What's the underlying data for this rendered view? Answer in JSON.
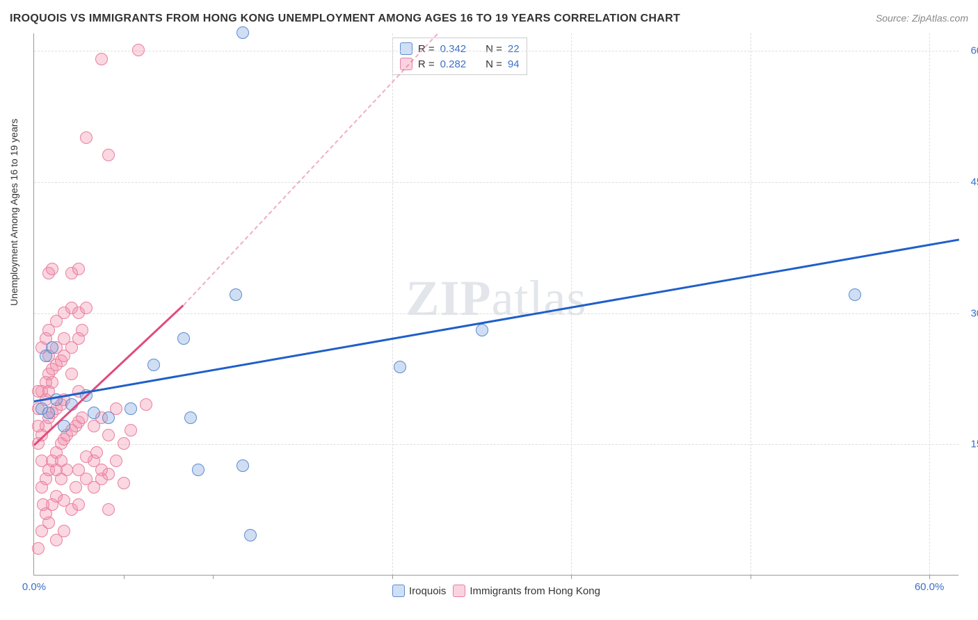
{
  "title": "IROQUOIS VS IMMIGRANTS FROM HONG KONG UNEMPLOYMENT AMONG AGES 16 TO 19 YEARS CORRELATION CHART",
  "source": "Source: ZipAtlas.com",
  "watermark": {
    "bold": "ZIP",
    "rest": "atlas"
  },
  "y_axis_label": "Unemployment Among Ages 16 to 19 years",
  "chart": {
    "type": "scatter",
    "xlim": [
      0,
      62
    ],
    "ylim": [
      0,
      62
    ],
    "x_ticks": [
      0,
      60
    ],
    "x_tick_labels": [
      "0.0%",
      "60.0%"
    ],
    "x_minor_ticks": [
      6,
      12,
      24,
      36,
      48,
      60
    ],
    "y_ticks": [
      15,
      30,
      45,
      60
    ],
    "y_tick_labels": [
      "15.0%",
      "30.0%",
      "45.0%",
      "60.0%"
    ],
    "grid_color": "#dddddd",
    "background_color": "#ffffff",
    "axis_color": "#999999",
    "point_radius": 9,
    "point_stroke_width": 1.5
  },
  "series": [
    {
      "name": "Iroquois",
      "color_fill": "rgba(120,160,220,0.35)",
      "color_stroke": "#5a8bd0",
      "legend_swatch_fill": "#cfe0f5",
      "legend_swatch_stroke": "#5a8bd0",
      "R": "0.342",
      "N": "22",
      "trend": {
        "x1": 0,
        "y1": 20,
        "x2": 62,
        "y2": 38.5,
        "color": "#1f5fc9",
        "width": 3
      },
      "trend_dashed": null,
      "points": [
        [
          0.5,
          19
        ],
        [
          0.8,
          25
        ],
        [
          1.0,
          18.5
        ],
        [
          1.2,
          26
        ],
        [
          1.5,
          20
        ],
        [
          2.0,
          17
        ],
        [
          2.5,
          19.5
        ],
        [
          3.5,
          20.5
        ],
        [
          4.0,
          18.5
        ],
        [
          5.0,
          18
        ],
        [
          6.5,
          19
        ],
        [
          8.0,
          24
        ],
        [
          10.0,
          27
        ],
        [
          10.5,
          18
        ],
        [
          11.0,
          12
        ],
        [
          13.5,
          32
        ],
        [
          14.0,
          12.5
        ],
        [
          14.5,
          4.5
        ],
        [
          24.5,
          23.8
        ],
        [
          30.0,
          28
        ],
        [
          55.0,
          32
        ],
        [
          14.0,
          62
        ]
      ]
    },
    {
      "name": "Immigrants from Hong Kong",
      "color_fill": "rgba(240,140,170,0.35)",
      "color_stroke": "#e87fa0",
      "legend_swatch_fill": "#f9d4e0",
      "legend_swatch_stroke": "#e87fa0",
      "R": "0.282",
      "N": "94",
      "trend": {
        "x1": 0,
        "y1": 15,
        "x2": 10,
        "y2": 31,
        "color": "#e24a7a",
        "width": 3
      },
      "trend_dashed": {
        "x1": 10,
        "y1": 31,
        "x2": 27,
        "y2": 62,
        "color": "rgba(226,74,122,0.45)"
      },
      "points": [
        [
          0.3,
          3
        ],
        [
          0.5,
          5
        ],
        [
          1.0,
          6
        ],
        [
          0.8,
          7
        ],
        [
          1.2,
          8
        ],
        [
          2.0,
          8.5
        ],
        [
          2.5,
          7.5
        ],
        [
          3.0,
          8
        ],
        [
          3.5,
          11
        ],
        [
          4.0,
          10
        ],
        [
          4.5,
          11
        ],
        [
          5.0,
          7.5
        ],
        [
          2.0,
          5
        ],
        [
          1.5,
          4
        ],
        [
          0.5,
          10
        ],
        [
          0.8,
          11
        ],
        [
          1.0,
          12
        ],
        [
          1.2,
          13
        ],
        [
          1.5,
          14
        ],
        [
          1.8,
          15
        ],
        [
          2.0,
          15.5
        ],
        [
          2.2,
          16
        ],
        [
          2.5,
          16.5
        ],
        [
          2.8,
          17
        ],
        [
          3.0,
          17.5
        ],
        [
          3.2,
          18
        ],
        [
          0.3,
          15
        ],
        [
          0.5,
          16
        ],
        [
          0.8,
          17
        ],
        [
          1.0,
          18
        ],
        [
          1.2,
          18.5
        ],
        [
          1.5,
          19
        ],
        [
          1.8,
          19.5
        ],
        [
          2.0,
          20
        ],
        [
          0.5,
          21
        ],
        [
          0.8,
          22
        ],
        [
          1.0,
          23
        ],
        [
          1.2,
          23.5
        ],
        [
          1.5,
          24
        ],
        [
          1.8,
          24.5
        ],
        [
          2.0,
          25
        ],
        [
          2.5,
          26
        ],
        [
          3.0,
          27
        ],
        [
          3.2,
          28
        ],
        [
          0.5,
          26
        ],
        [
          0.8,
          27
        ],
        [
          1.0,
          28
        ],
        [
          1.5,
          29
        ],
        [
          2.0,
          30
        ],
        [
          2.5,
          30.5
        ],
        [
          3.0,
          30
        ],
        [
          3.5,
          30.5
        ],
        [
          1.0,
          25
        ],
        [
          4.0,
          13
        ],
        [
          4.5,
          12
        ],
        [
          5.0,
          11.5
        ],
        [
          5.5,
          13
        ],
        [
          6.0,
          10.5
        ],
        [
          4.0,
          17
        ],
        [
          4.5,
          18
        ],
        [
          5.0,
          16
        ],
        [
          5.5,
          19
        ],
        [
          6.0,
          15
        ],
        [
          6.5,
          16.5
        ],
        [
          1.0,
          34.5
        ],
        [
          1.2,
          35
        ],
        [
          2.5,
          34.5
        ],
        [
          3.0,
          35
        ],
        [
          3.5,
          50
        ],
        [
          5.0,
          48
        ],
        [
          7.0,
          60
        ],
        [
          4.5,
          59
        ],
        [
          7.5,
          19.5
        ],
        [
          3.0,
          12
        ],
        [
          3.5,
          13.5
        ],
        [
          2.8,
          10
        ],
        [
          1.5,
          9
        ],
        [
          2.2,
          12
        ],
        [
          1.8,
          11
        ],
        [
          0.5,
          13
        ],
        [
          0.3,
          19
        ],
        [
          0.3,
          17
        ],
        [
          0.3,
          21
        ],
        [
          2.0,
          27
        ],
        [
          1.5,
          26
        ],
        [
          2.5,
          23
        ],
        [
          3.0,
          21
        ],
        [
          0.8,
          20
        ],
        [
          1.0,
          21
        ],
        [
          1.2,
          22
        ],
        [
          1.5,
          12
        ],
        [
          1.8,
          13
        ],
        [
          0.6,
          8
        ],
        [
          4.2,
          14
        ]
      ]
    }
  ],
  "legend_top": {
    "R_label": "R =",
    "N_label": "N ="
  },
  "legend_bottom": {
    "items": [
      "Iroquois",
      "Immigrants from Hong Kong"
    ]
  }
}
